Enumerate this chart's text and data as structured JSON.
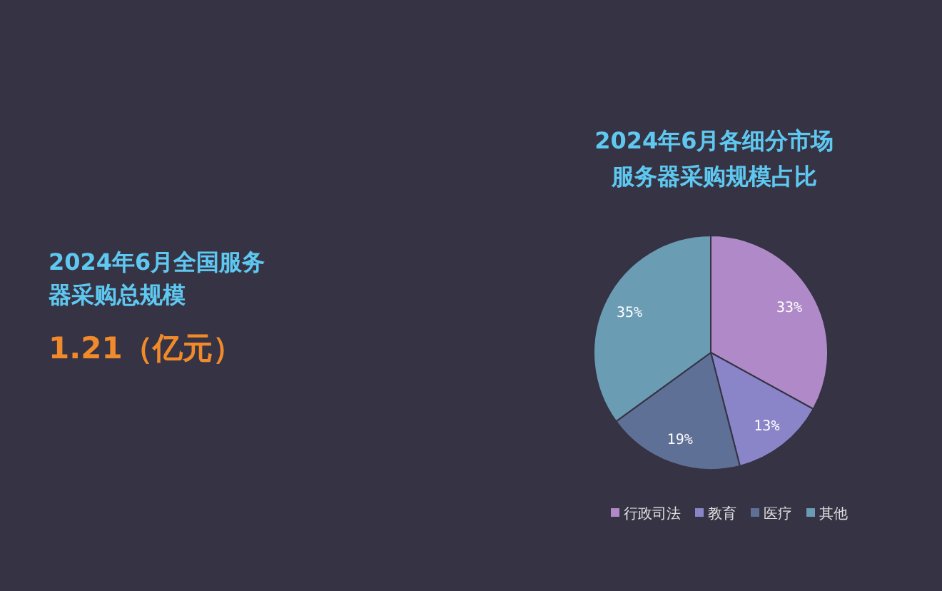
{
  "chart_data": {
    "type": "pie",
    "title": "2024年6月各细分市场服务器采购规模占比",
    "categories": [
      "行政司法",
      "教育",
      "医疗",
      "其他"
    ],
    "values": [
      33,
      13,
      19,
      35
    ],
    "colors": [
      "#b08ac8",
      "#8a85c8",
      "#5f7096",
      "#6a9cb4"
    ],
    "value_labels": [
      "33%",
      "13%",
      "19%",
      "35%"
    ],
    "legend": "bottom",
    "annotations": [
      "2024年6月全国服务器采购总规模",
      "1.21（亿元）"
    ]
  }
}
